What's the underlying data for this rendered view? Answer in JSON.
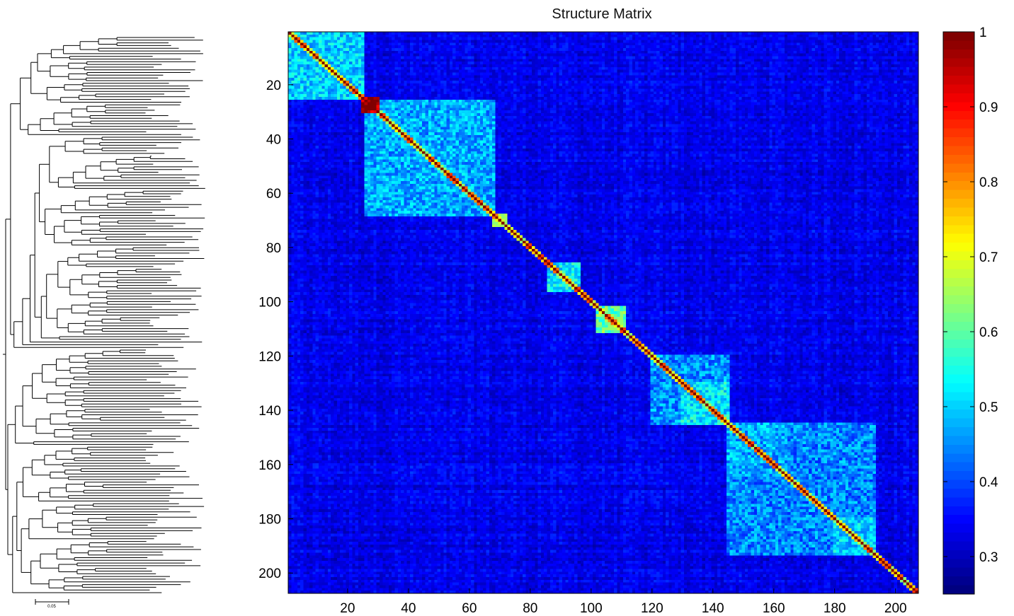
{
  "chart_data": [
    {
      "type": "heatmap",
      "title": "Structure Matrix",
      "xlabel": "",
      "ylabel": "",
      "n": 207,
      "xlim": [
        1,
        207
      ],
      "ylim": [
        1,
        207
      ],
      "x_ticks": [
        20,
        40,
        60,
        80,
        100,
        120,
        140,
        160,
        180,
        200
      ],
      "y_ticks": [
        20,
        40,
        60,
        80,
        100,
        120,
        140,
        160,
        180,
        200
      ],
      "diagonal_value": 1,
      "background_value": 0.33,
      "blocks": [
        {
          "start": 1,
          "end": 25,
          "value": 0.5
        },
        {
          "start": 25,
          "end": 30,
          "value": 0.97
        },
        {
          "start": 26,
          "end": 68,
          "value": 0.47
        },
        {
          "start": 68,
          "end": 72,
          "value": 0.6
        },
        {
          "start": 86,
          "end": 96,
          "value": 0.52
        },
        {
          "start": 102,
          "end": 111,
          "value": 0.6
        },
        {
          "start": 120,
          "end": 145,
          "value": 0.45
        },
        {
          "start": 130,
          "end": 145,
          "value": 0.52
        },
        {
          "start": 145,
          "end": 193,
          "value": 0.44
        },
        {
          "start": 145,
          "end": 164,
          "value": 0.47
        },
        {
          "start": 180,
          "end": 193,
          "value": 0.5
        }
      ],
      "colorbar": {
        "colormap": "jet",
        "min": 0.25,
        "max": 1,
        "ticks": [
          0.3,
          0.4,
          0.5,
          0.6,
          0.7,
          0.8,
          0.9,
          1
        ],
        "tick_labels": [
          "0.3",
          "0.4",
          "0.5",
          "0.6",
          "0.7",
          "0.8",
          "0.9",
          "1"
        ]
      },
      "grid": false
    },
    {
      "type": "dendrogram",
      "leaves": 207,
      "scale_bar_label": "0.05"
    }
  ]
}
